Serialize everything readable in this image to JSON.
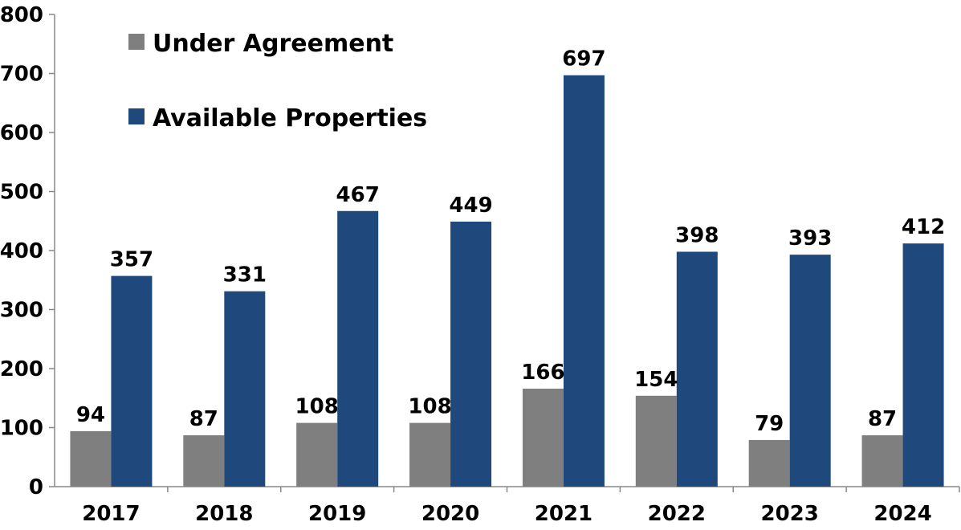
{
  "chart_data": {
    "type": "bar",
    "title": "",
    "xlabel": "",
    "ylabel": "",
    "ylim": [
      0,
      800
    ],
    "yticks": [
      0,
      100,
      200,
      300,
      400,
      500,
      600,
      700,
      800
    ],
    "grid": false,
    "legend_placement": "top-left",
    "categories": [
      "2017",
      "2018",
      "2019",
      "2020",
      "2021",
      "2022",
      "2023",
      "2024"
    ],
    "series": [
      {
        "name": "Under Agreement",
        "color": "#7f7f7f",
        "values": [
          94,
          87,
          108,
          108,
          166,
          154,
          79,
          87
        ]
      },
      {
        "name": "Available Properties",
        "color": "#1f497d",
        "values": [
          357,
          331,
          467,
          449,
          697,
          398,
          393,
          412
        ]
      }
    ]
  }
}
